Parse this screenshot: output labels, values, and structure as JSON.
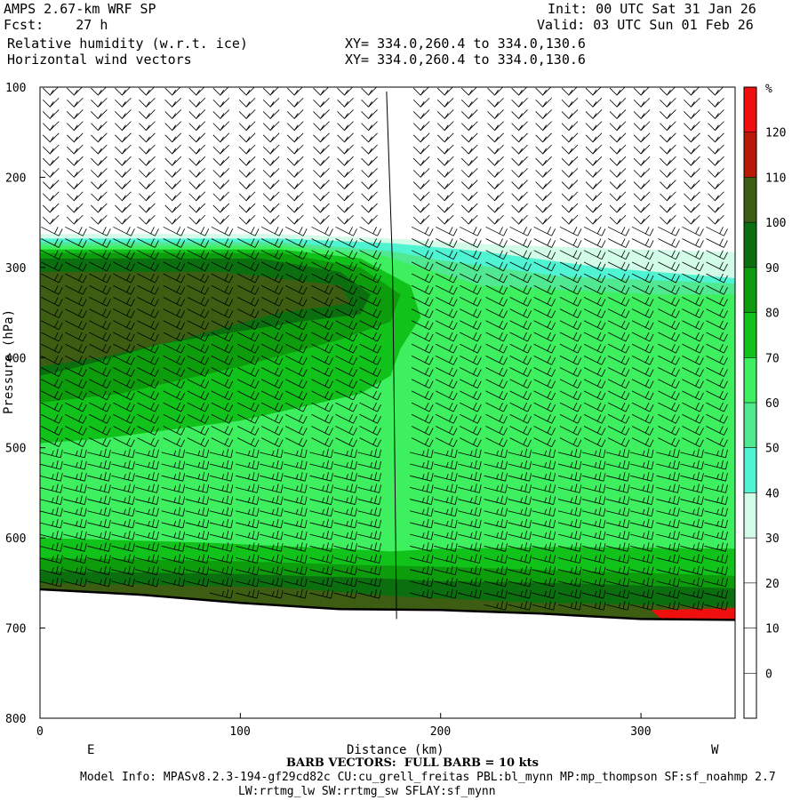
{
  "header": {
    "model": "AMPS 2.67-km WRF SP",
    "forecast": "Fcst:    27 h",
    "init": "Init: 00 UTC Sat 31 Jan 26",
    "valid": "Valid: 03 UTC Sun 01 Feb 26",
    "field1": "Relative humidity (w.r.t. ice)",
    "field2": "Horizontal wind vectors",
    "xy1": "XY= 334.0,260.4 to 334.0,130.6",
    "xy2": "XY= 334.0,260.4 to 334.0,130.6"
  },
  "footer": {
    "barb": "BARB VECTORS:  FULL BARB = 10 kts",
    "model_info": "Model Info: MPASv8.2.3-194-gf29cd82c CU:cu_grell_freitas PBL:bl_mynn MP:mp_thompson SF:sf_noahmp 2.7",
    "model_info2": "LW:rrtmg_lw SW:rrtmg_sw SFLAY:sf_mynn"
  },
  "chart_data": {
    "type": "heatmap",
    "xlabel": "Distance (km)",
    "ylabel": "Pressure (hPa)",
    "xlim": [
      0,
      347
    ],
    "ylim": [
      800,
      100
    ],
    "x_ticks": [
      0,
      100,
      200,
      300
    ],
    "y_ticks": [
      100,
      200,
      300,
      400,
      500,
      600,
      700,
      800
    ],
    "x_end_labels": {
      "left": "E",
      "right": "W"
    },
    "colorbar": {
      "unit": "%",
      "levels": [
        -10,
        0,
        10,
        20,
        30,
        40,
        50,
        60,
        70,
        80,
        90,
        100,
        110,
        120,
        130
      ],
      "tick_labels": [
        "0",
        "10",
        "20",
        "30",
        "40",
        "50",
        "60",
        "70",
        "80",
        "90",
        "100",
        "110",
        "120"
      ],
      "colors": [
        "#ffffff",
        "#ffffff",
        "#ffffff",
        "#ffffff",
        "#d2fbe8",
        "#4ff4d3",
        "#50e890",
        "#3ef05f",
        "#10c21a",
        "#0d9c0c",
        "#0b6f10",
        "#3d5e12",
        "#b81a07",
        "#f00f0f"
      ]
    },
    "surface_pressure": [
      {
        "x": 0,
        "p": 657
      },
      {
        "x": 50,
        "p": 663
      },
      {
        "x": 100,
        "p": 672
      },
      {
        "x": 150,
        "p": 679
      },
      {
        "x": 200,
        "p": 680
      },
      {
        "x": 250,
        "p": 684
      },
      {
        "x": 300,
        "p": 690
      },
      {
        "x": 347,
        "p": 691
      }
    ],
    "rh_regions": [
      {
        "level": 30,
        "poly": [
          [
            0,
            263
          ],
          [
            120,
            263
          ],
          [
            175,
            268
          ],
          [
            230,
            275
          ],
          [
            300,
            280
          ],
          [
            347,
            283
          ],
          [
            347,
            657
          ],
          [
            0,
            657
          ]
        ]
      },
      {
        "level": 40,
        "poly": [
          [
            0,
            268
          ],
          [
            120,
            268
          ],
          [
            175,
            273
          ],
          [
            220,
            282
          ],
          [
            280,
            300
          ],
          [
            347,
            312
          ],
          [
            347,
            657
          ],
          [
            0,
            657
          ]
        ]
      },
      {
        "level": 50,
        "poly": [
          [
            0,
            272
          ],
          [
            120,
            272
          ],
          [
            175,
            282
          ],
          [
            200,
            292
          ],
          [
            260,
            310
          ],
          [
            347,
            318
          ],
          [
            347,
            657
          ],
          [
            0,
            657
          ]
        ]
      },
      {
        "level": 60,
        "poly": [
          [
            0,
            276
          ],
          [
            120,
            276
          ],
          [
            170,
            286
          ],
          [
            190,
            300
          ],
          [
            220,
            320
          ],
          [
            260,
            325
          ],
          [
            310,
            330
          ],
          [
            347,
            330
          ],
          [
            347,
            657
          ],
          [
            0,
            657
          ]
        ]
      },
      {
        "level": 70,
        "poly": [
          [
            0,
            280
          ],
          [
            120,
            280
          ],
          [
            160,
            290
          ],
          [
            185,
            320
          ],
          [
            190,
            355
          ],
          [
            180,
            390
          ],
          [
            175,
            420
          ],
          [
            160,
            440
          ],
          [
            100,
            470
          ],
          [
            30,
            490
          ],
          [
            0,
            495
          ]
        ]
      },
      {
        "level": 80,
        "poly": [
          [
            0,
            284
          ],
          [
            120,
            284
          ],
          [
            160,
            300
          ],
          [
            180,
            330
          ],
          [
            175,
            360
          ],
          [
            150,
            380
          ],
          [
            100,
            410
          ],
          [
            40,
            440
          ],
          [
            0,
            450
          ]
        ]
      },
      {
        "level": 90,
        "poly": [
          [
            0,
            290
          ],
          [
            110,
            290
          ],
          [
            150,
            305
          ],
          [
            165,
            330
          ],
          [
            160,
            352
          ],
          [
            130,
            360
          ],
          [
            60,
            385
          ],
          [
            20,
            410
          ],
          [
            0,
            420
          ]
        ]
      },
      {
        "level": 100,
        "poly": [
          [
            0,
            305
          ],
          [
            90,
            305
          ],
          [
            150,
            320
          ],
          [
            155,
            340
          ],
          [
            120,
            350
          ],
          [
            70,
            380
          ],
          [
            30,
            400
          ],
          [
            0,
            410
          ]
        ]
      }
    ],
    "rh_low_layer": [
      {
        "level": 70,
        "poly": [
          [
            0,
            600
          ],
          [
            80,
            605
          ],
          [
            150,
            612
          ],
          [
            175,
            615
          ],
          [
            200,
            612
          ],
          [
            260,
            610
          ],
          [
            347,
            612
          ],
          [
            347,
            657
          ],
          [
            0,
            657
          ]
        ]
      },
      {
        "level": 80,
        "poly": [
          [
            0,
            622
          ],
          [
            100,
            626
          ],
          [
            160,
            630
          ],
          [
            200,
            632
          ],
          [
            260,
            636
          ],
          [
            347,
            642
          ],
          [
            347,
            670
          ],
          [
            0,
            670
          ]
        ]
      },
      {
        "level": 90,
        "poly": [
          [
            0,
            637
          ],
          [
            100,
            640
          ],
          [
            160,
            644
          ],
          [
            200,
            648
          ],
          [
            260,
            650
          ],
          [
            347,
            656
          ],
          [
            347,
            690
          ],
          [
            0,
            690
          ]
        ]
      },
      {
        "level": 100,
        "poly": [
          [
            0,
            650
          ],
          [
            120,
            655
          ],
          [
            180,
            665
          ],
          [
            250,
            672
          ],
          [
            347,
            676
          ],
          [
            347,
            691
          ],
          [
            0,
            691
          ]
        ]
      },
      {
        "level": 120,
        "poly": [
          [
            305,
            680
          ],
          [
            347,
            678
          ],
          [
            347,
            691
          ],
          [
            310,
            690
          ]
        ]
      }
    ],
    "barb_columns_x": [
      5,
      17,
      29,
      41,
      53,
      66,
      78,
      90,
      103,
      115,
      127,
      140,
      152,
      164,
      190,
      202,
      214,
      227,
      239,
      251,
      264,
      276,
      288,
      300,
      313,
      325,
      337
    ],
    "barb_directions": [
      "upper: NW flow",
      "mid: W-SW flow",
      "lower: strong W flow"
    ]
  }
}
